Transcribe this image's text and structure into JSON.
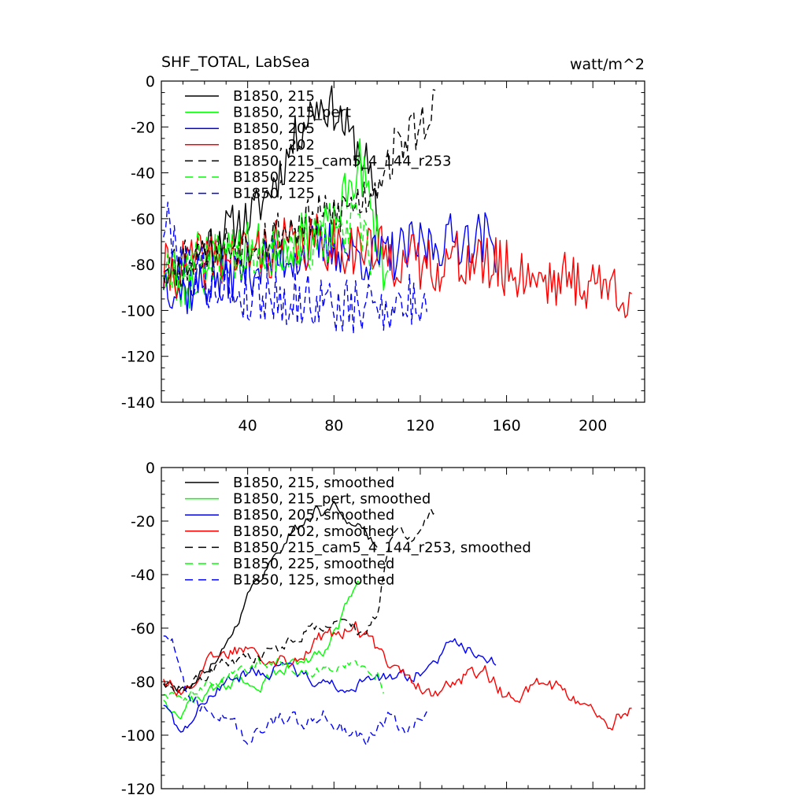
{
  "figure": {
    "title": "SHF_TOTAL, LabSea",
    "units": "watt/m^2"
  },
  "chart_data": [
    {
      "type": "line",
      "title": "SHF_TOTAL, LabSea",
      "units": "watt/m^2",
      "xlim": [
        0,
        224
      ],
      "ylim": [
        -140,
        0
      ],
      "xticks": [
        40,
        80,
        120,
        160,
        200
      ],
      "yticks": [
        0,
        -20,
        -40,
        -60,
        -80,
        -100,
        -120,
        -140
      ],
      "show_xtick_labels": true,
      "series": [
        {
          "name": "B1850, 215",
          "color": "#000000",
          "dash": "solid",
          "seed": 11,
          "x_start": 1,
          "x_end": 100,
          "anchors": [
            [
              1,
              -78
            ],
            [
              10,
              -82
            ],
            [
              20,
              -72
            ],
            [
              30,
              -65
            ],
            [
              40,
              -60
            ],
            [
              45,
              -55
            ],
            [
              55,
              -40
            ],
            [
              62,
              -25
            ],
            [
              68,
              -15
            ],
            [
              72,
              -10
            ],
            [
              80,
              -12
            ],
            [
              85,
              -20
            ],
            [
              90,
              -28
            ],
            [
              95,
              -35
            ],
            [
              100,
              -60
            ]
          ],
          "amp": 10
        },
        {
          "name": "B1850, 215_pert",
          "color": "#00ff00",
          "dash": "solid",
          "seed": 23,
          "x_start": 1,
          "x_end": 105,
          "anchors": [
            [
              1,
              -85
            ],
            [
              10,
              -92
            ],
            [
              20,
              -82
            ],
            [
              30,
              -75
            ],
            [
              40,
              -72
            ],
            [
              50,
              -75
            ],
            [
              60,
              -70
            ],
            [
              70,
              -66
            ],
            [
              80,
              -64
            ],
            [
              88,
              -45
            ],
            [
              92,
              -35
            ],
            [
              98,
              -60
            ],
            [
              105,
              -88
            ]
          ],
          "amp": 12
        },
        {
          "name": "B1850, 205",
          "color": "#0000ff",
          "dash": "solid",
          "seed": 37,
          "x_start": 1,
          "x_end": 155,
          "anchors": [
            [
              1,
              -85
            ],
            [
              10,
              -92
            ],
            [
              20,
              -88
            ],
            [
              30,
              -85
            ],
            [
              40,
              -82
            ],
            [
              50,
              -78
            ],
            [
              60,
              -76
            ],
            [
              70,
              -74
            ],
            [
              80,
              -72
            ],
            [
              90,
              -75
            ],
            [
              100,
              -78
            ],
            [
              110,
              -75
            ],
            [
              120,
              -72
            ],
            [
              130,
              -70
            ],
            [
              140,
              -68
            ],
            [
              150,
              -68
            ],
            [
              155,
              -72
            ]
          ],
          "amp": 12
        },
        {
          "name": "B1850, 202",
          "color": "#ff0000",
          "dash": "solid",
          "seed": 41,
          "x_start": 1,
          "x_end": 218,
          "anchors": [
            [
              1,
              -84
            ],
            [
              20,
              -78
            ],
            [
              40,
              -75
            ],
            [
              60,
              -72
            ],
            [
              80,
              -70
            ],
            [
              100,
              -75
            ],
            [
              120,
              -80
            ],
            [
              140,
              -78
            ],
            [
              160,
              -82
            ],
            [
              180,
              -86
            ],
            [
              200,
              -88
            ],
            [
              218,
              -92
            ]
          ],
          "amp": 13
        },
        {
          "name": "B1850, 215_cam5_4_144_r253",
          "color": "#000000",
          "dash": "dashed",
          "seed": 53,
          "x_start": 1,
          "x_end": 127,
          "anchors": [
            [
              1,
              -80
            ],
            [
              20,
              -74
            ],
            [
              40,
              -70
            ],
            [
              60,
              -64
            ],
            [
              80,
              -58
            ],
            [
              95,
              -50
            ],
            [
              105,
              -35
            ],
            [
              112,
              -25
            ],
            [
              120,
              -20
            ],
            [
              127,
              -8
            ]
          ],
          "amp": 11
        },
        {
          "name": "B1850, 225",
          "color": "#00ff00",
          "dash": "dashed",
          "seed": 67,
          "x_start": 1,
          "x_end": 98,
          "anchors": [
            [
              1,
              -80
            ],
            [
              20,
              -76
            ],
            [
              40,
              -74
            ],
            [
              60,
              -72
            ],
            [
              80,
              -70
            ],
            [
              90,
              -62
            ],
            [
              98,
              -80
            ]
          ],
          "amp": 12
        },
        {
          "name": "B1850, 125",
          "color": "#0000ff",
          "dash": "dashed",
          "seed": 79,
          "x_start": 1,
          "x_end": 123,
          "anchors": [
            [
              1,
              -62
            ],
            [
              5,
              -65
            ],
            [
              10,
              -80
            ],
            [
              20,
              -85
            ],
            [
              30,
              -90
            ],
            [
              40,
              -94
            ],
            [
              50,
              -92
            ],
            [
              60,
              -96
            ],
            [
              70,
              -95
            ],
            [
              80,
              -98
            ],
            [
              90,
              -100
            ],
            [
              100,
              -96
            ],
            [
              110,
              -98
            ],
            [
              123,
              -95
            ]
          ],
          "amp": 13
        }
      ]
    },
    {
      "type": "line",
      "title": "",
      "xlim": [
        0,
        224
      ],
      "ylim": [
        -120,
        0
      ],
      "xticks": [
        40,
        80,
        120,
        160,
        200
      ],
      "yticks": [
        0,
        -20,
        -40,
        -60,
        -80,
        -100,
        -120
      ],
      "show_xtick_labels": false,
      "series": [
        {
          "name": "B1850, 215, smoothed",
          "color": "#000000",
          "dash": "solid",
          "seed": 111,
          "x_start": 1,
          "x_end": 100,
          "anchors": [
            [
              1,
              -80
            ],
            [
              10,
              -84
            ],
            [
              20,
              -76
            ],
            [
              30,
              -66
            ],
            [
              35,
              -58
            ],
            [
              40,
              -48
            ],
            [
              45,
              -42
            ],
            [
              50,
              -36
            ],
            [
              55,
              -30
            ],
            [
              60,
              -24
            ],
            [
              65,
              -22
            ],
            [
              70,
              -18
            ],
            [
              72,
              -13
            ],
            [
              75,
              -18
            ],
            [
              80,
              -14
            ],
            [
              85,
              -18
            ],
            [
              90,
              -22
            ],
            [
              95,
              -25
            ],
            [
              100,
              -30
            ]
          ],
          "amp": 2
        },
        {
          "name": "B1850, 215_pert, smoothed",
          "color": "#00ff00",
          "dash": "solid",
          "seed": 123,
          "x_start": 1,
          "x_end": 92,
          "anchors": [
            [
              1,
              -86
            ],
            [
              8,
              -92
            ],
            [
              15,
              -88
            ],
            [
              25,
              -82
            ],
            [
              35,
              -80
            ],
            [
              45,
              -82
            ],
            [
              55,
              -76
            ],
            [
              65,
              -72
            ],
            [
              75,
              -68
            ],
            [
              82,
              -60
            ],
            [
              88,
              -48
            ],
            [
              92,
              -44
            ]
          ],
          "amp": 2.5
        },
        {
          "name": "B1850, 205, smoothed",
          "color": "#0000ff",
          "dash": "solid",
          "seed": 137,
          "x_start": 1,
          "x_end": 155,
          "anchors": [
            [
              1,
              -88
            ],
            [
              6,
              -95
            ],
            [
              12,
              -98
            ],
            [
              18,
              -88
            ],
            [
              25,
              -82
            ],
            [
              35,
              -78
            ],
            [
              45,
              -76
            ],
            [
              55,
              -75
            ],
            [
              65,
              -78
            ],
            [
              75,
              -80
            ],
            [
              85,
              -84
            ],
            [
              95,
              -80
            ],
            [
              105,
              -78
            ],
            [
              115,
              -80
            ],
            [
              125,
              -72
            ],
            [
              135,
              -66
            ],
            [
              145,
              -68
            ],
            [
              155,
              -72
            ]
          ],
          "amp": 2.5
        },
        {
          "name": "B1850, 202, smoothed",
          "color": "#ff0000",
          "dash": "solid",
          "seed": 141,
          "x_start": 1,
          "x_end": 218,
          "anchors": [
            [
              1,
              -78
            ],
            [
              10,
              -84
            ],
            [
              20,
              -74
            ],
            [
              30,
              -70
            ],
            [
              40,
              -66
            ],
            [
              50,
              -70
            ],
            [
              60,
              -72
            ],
            [
              70,
              -66
            ],
            [
              80,
              -62
            ],
            [
              90,
              -60
            ],
            [
              100,
              -68
            ],
            [
              110,
              -74
            ],
            [
              120,
              -82
            ],
            [
              130,
              -84
            ],
            [
              140,
              -78
            ],
            [
              150,
              -76
            ],
            [
              160,
              -86
            ],
            [
              170,
              -84
            ],
            [
              180,
              -80
            ],
            [
              190,
              -86
            ],
            [
              200,
              -92
            ],
            [
              208,
              -100
            ],
            [
              212,
              -92
            ],
            [
              218,
              -90
            ]
          ],
          "amp": 3
        },
        {
          "name": "B1850, 215_cam5_4_144_r253, smoothed",
          "color": "#000000",
          "dash": "dashed",
          "seed": 153,
          "x_start": 1,
          "x_end": 127,
          "anchors": [
            [
              1,
              -80
            ],
            [
              10,
              -82
            ],
            [
              20,
              -78
            ],
            [
              30,
              -74
            ],
            [
              40,
              -72
            ],
            [
              50,
              -70
            ],
            [
              60,
              -64
            ],
            [
              70,
              -60
            ],
            [
              80,
              -56
            ],
            [
              90,
              -60
            ],
            [
              95,
              -62
            ],
            [
              100,
              -55
            ],
            [
              103,
              -40
            ],
            [
              106,
              -28
            ],
            [
              110,
              -20
            ],
            [
              115,
              -26
            ],
            [
              120,
              -24
            ],
            [
              127,
              -16
            ]
          ],
          "amp": 2.5
        },
        {
          "name": "B1850, 225, smoothed",
          "color": "#00ff00",
          "dash": "dashed",
          "seed": 167,
          "x_start": 1,
          "x_end": 103,
          "anchors": [
            [
              1,
              -84
            ],
            [
              10,
              -86
            ],
            [
              20,
              -82
            ],
            [
              30,
              -78
            ],
            [
              40,
              -74
            ],
            [
              50,
              -72
            ],
            [
              60,
              -74
            ],
            [
              70,
              -76
            ],
            [
              80,
              -74
            ],
            [
              90,
              -72
            ],
            [
              100,
              -76
            ],
            [
              103,
              -82
            ]
          ],
          "amp": 2.5
        },
        {
          "name": "B1850, 125, smoothed",
          "color": "#0000ff",
          "dash": "dashed",
          "seed": 179,
          "x_start": 1,
          "x_end": 123,
          "anchors": [
            [
              1,
              -62
            ],
            [
              5,
              -64
            ],
            [
              10,
              -80
            ],
            [
              15,
              -88
            ],
            [
              25,
              -90
            ],
            [
              35,
              -98
            ],
            [
              40,
              -106
            ],
            [
              45,
              -96
            ],
            [
              55,
              -94
            ],
            [
              65,
              -96
            ],
            [
              75,
              -92
            ],
            [
              85,
              -98
            ],
            [
              95,
              -100
            ],
            [
              105,
              -94
            ],
            [
              115,
              -98
            ],
            [
              123,
              -90
            ]
          ],
          "amp": 3
        }
      ]
    }
  ]
}
